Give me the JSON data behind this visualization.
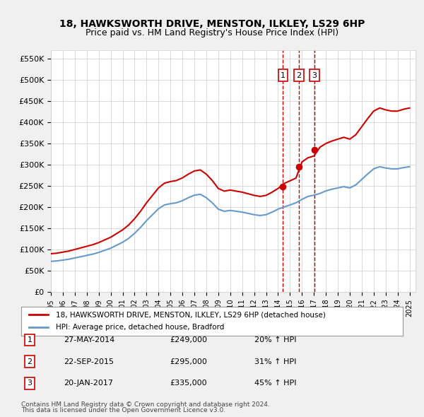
{
  "title1": "18, HAWKSWORTH DRIVE, MENSTON, ILKLEY, LS29 6HP",
  "title2": "Price paid vs. HM Land Registry's House Price Index (HPI)",
  "ylabel": "",
  "xlabel": "",
  "ylim": [
    0,
    570000
  ],
  "yticks": [
    0,
    50000,
    100000,
    150000,
    200000,
    250000,
    300000,
    350000,
    400000,
    450000,
    500000,
    550000
  ],
  "ytick_labels": [
    "£0",
    "£50K",
    "£100K",
    "£150K",
    "£200K",
    "£250K",
    "£300K",
    "£350K",
    "£400K",
    "£450K",
    "£500K",
    "£550K"
  ],
  "red_line_color": "#cc0000",
  "blue_line_color": "#6699cc",
  "transaction_dates": [
    "2014-05-27",
    "2015-09-22",
    "2017-01-20"
  ],
  "transaction_prices": [
    249000,
    295000,
    335000
  ],
  "transaction_labels": [
    "1",
    "2",
    "3"
  ],
  "transaction_info": [
    {
      "label": "1",
      "date": "27-MAY-2014",
      "price": "£249,000",
      "change": "20% ↑ HPI"
    },
    {
      "label": "2",
      "date": "22-SEP-2015",
      "price": "£295,000",
      "change": "31% ↑ HPI"
    },
    {
      "label": "3",
      "date": "20-JAN-2017",
      "price": "£335,000",
      "change": "45% ↑ HPI"
    }
  ],
  "legend_line1": "18, HAWKSWORTH DRIVE, MENSTON, ILKLEY, LS29 6HP (detached house)",
  "legend_line2": "HPI: Average price, detached house, Bradford",
  "footer1": "Contains HM Land Registry data © Crown copyright and database right 2024.",
  "footer2": "This data is licensed under the Open Government Licence v3.0.",
  "background_color": "#f0f0f0",
  "plot_bg_color": "#ffffff"
}
